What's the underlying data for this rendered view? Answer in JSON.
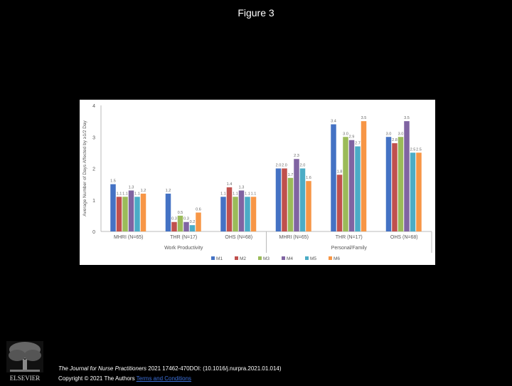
{
  "page": {
    "title": "Figure 3",
    "citation_journal": "The Journal for Nurse Practitioners",
    "citation_rest": " 2021 17462-470DOI: (10.1016/j.nurpra.2021.01.014)",
    "copyright_text": "Copyright © 2021 The Authors ",
    "copyright_link": "Terms and Conditions",
    "logo_text": "ELSEVIER"
  },
  "chart_data": {
    "type": "bar",
    "ylabel": "Average Number of Days Affected by ≥1/2 Day",
    "ylim": [
      0,
      4
    ],
    "yticks": [
      0,
      1,
      2,
      3,
      4
    ],
    "grid": false,
    "legend_position": "bottom",
    "groups": [
      {
        "label": "Work Productivity",
        "categories": [
          "MHRI (N=65)",
          "THR (N=17)",
          "OHS (N=68)"
        ]
      },
      {
        "label": "Personal/Family",
        "categories": [
          "MHRI (N=65)",
          "THR (N=17)",
          "OHS (N=68)"
        ]
      }
    ],
    "categories": [
      "MHRI (N=65)",
      "THR (N=17)",
      "OHS (N=68)",
      "MHRI (N=65)",
      "THR (N=17)",
      "OHS (N=68)"
    ],
    "series": [
      {
        "name": "M1",
        "color": "#4472c4",
        "values": [
          1.5,
          1.2,
          1.1,
          2.0,
          3.4,
          3.0
        ]
      },
      {
        "name": "M2",
        "color": "#c0504d",
        "values": [
          1.1,
          0.3,
          1.4,
          2.0,
          1.8,
          2.8
        ]
      },
      {
        "name": "M3",
        "color": "#9bbb59",
        "values": [
          1.1,
          0.5,
          1.1,
          1.7,
          3.0,
          3.0
        ]
      },
      {
        "name": "M4",
        "color": "#8064a2",
        "values": [
          1.3,
          0.3,
          1.3,
          2.3,
          2.9,
          3.5
        ]
      },
      {
        "name": "M5",
        "color": "#4bacc6",
        "values": [
          1.1,
          0.2,
          1.1,
          2.0,
          2.7,
          2.5
        ]
      },
      {
        "name": "M6",
        "color": "#f79646",
        "values": [
          1.2,
          0.6,
          1.1,
          1.6,
          3.5,
          2.5
        ]
      }
    ],
    "data_labels": [
      [
        "1.5",
        "1.1",
        "1.1",
        "1.3",
        "1.1",
        "1.2"
      ],
      [
        "1.2",
        "0.3",
        "0.5",
        "0.3",
        "0.2",
        "0.6"
      ],
      [
        "1.1",
        "1.4",
        "1.1",
        "1.3",
        "1.1",
        "1.1"
      ],
      [
        "2.0",
        "2.0",
        "1.7",
        "2.3",
        "2.0",
        "1.6"
      ],
      [
        "3.4",
        "1.8",
        "3.0",
        "2.9",
        "2.7",
        "3.5"
      ],
      [
        "3.0",
        "2.8",
        "3.0",
        "3.5",
        "2.5",
        "2.5"
      ]
    ]
  }
}
